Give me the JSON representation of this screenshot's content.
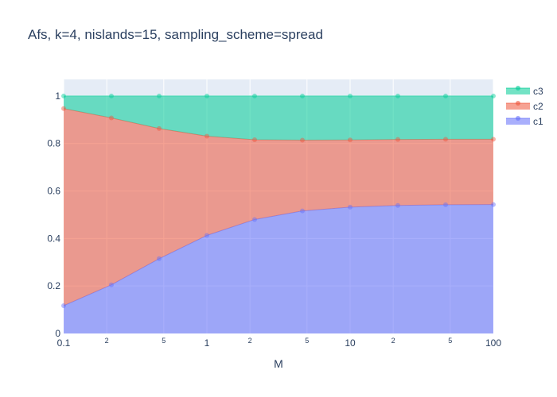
{
  "chart_data": {
    "type": "area",
    "title": "Afs, k=4, nislands=15, sampling_scheme=spread",
    "xlabel": "M",
    "ylabel": "",
    "x_scale": "log",
    "xlim": [
      0.1,
      100
    ],
    "ylim": [
      0,
      1.07
    ],
    "grid": true,
    "legend_position": "right",
    "x": [
      0.1,
      0.2154,
      0.4642,
      1,
      2.154,
      4.642,
      10,
      21.54,
      46.42,
      100
    ],
    "x_ticks": [
      "0.1",
      "2",
      "5",
      "1",
      "2",
      "5",
      "10",
      "2",
      "5",
      "100"
    ],
    "y_ticks": [
      "0",
      "0.2",
      "0.4",
      "0.6",
      "0.8",
      "1"
    ],
    "stacked": true,
    "series": [
      {
        "name": "c1",
        "color": "#636efa",
        "values": [
          0.117,
          0.205,
          0.315,
          0.413,
          0.48,
          0.516,
          0.532,
          0.539,
          0.542,
          0.543
        ]
      },
      {
        "name": "c2",
        "color": "#ef553b",
        "values": [
          0.83,
          0.703,
          0.548,
          0.418,
          0.336,
          0.298,
          0.283,
          0.278,
          0.276,
          0.275
        ]
      },
      {
        "name": "c3",
        "color": "#00cc96",
        "values": [
          0.053,
          0.092,
          0.137,
          0.169,
          0.184,
          0.186,
          0.185,
          0.183,
          0.182,
          0.182
        ]
      }
    ],
    "legend_order": [
      "c3",
      "c2",
      "c1"
    ]
  }
}
